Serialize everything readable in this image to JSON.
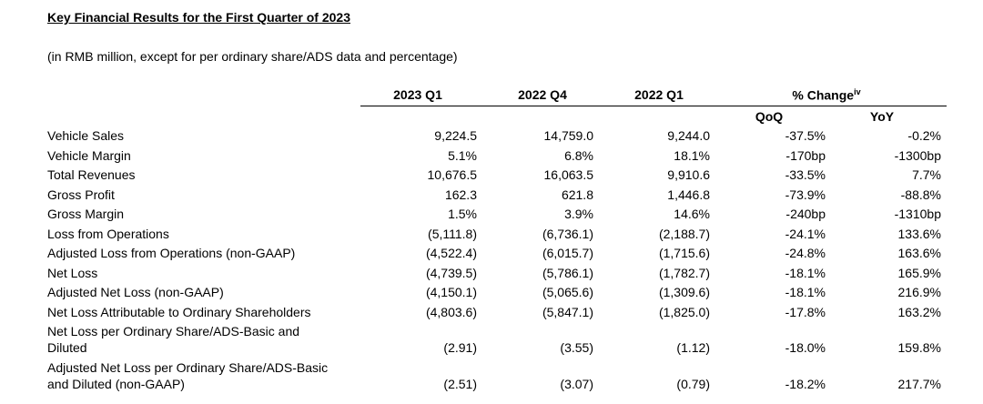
{
  "title": "Key Financial Results for the First Quarter of 2023",
  "subtitle": "(in RMB million, except for per ordinary share/ADS data and percentage)",
  "columns": [
    "2023 Q1",
    "2022 Q4",
    "2022 Q1"
  ],
  "change_header": "% Change",
  "change_sup": "iv",
  "subheaders": [
    "QoQ",
    "YoY"
  ],
  "rows": [
    {
      "label": [
        "Vehicle Sales"
      ],
      "values": [
        "9,224.5",
        "14,759.0",
        "9,244.0",
        "-37.5%",
        "-0.2%"
      ]
    },
    {
      "label": [
        "Vehicle Margin"
      ],
      "values": [
        "5.1%",
        "6.8%",
        "18.1%",
        "-170bp",
        "-1300bp"
      ]
    },
    {
      "label": [
        "Total Revenues"
      ],
      "values": [
        "10,676.5",
        "16,063.5",
        "9,910.6",
        "-33.5%",
        "7.7%"
      ]
    },
    {
      "label": [
        "Gross Profit"
      ],
      "values": [
        "162.3",
        "621.8",
        "1,446.8",
        "-73.9%",
        "-88.8%"
      ]
    },
    {
      "label": [
        "Gross Margin"
      ],
      "values": [
        "1.5%",
        "3.9%",
        "14.6%",
        "-240bp",
        "-1310bp"
      ]
    },
    {
      "label": [
        "Loss from Operations"
      ],
      "values": [
        "(5,111.8)",
        "(6,736.1)",
        "(2,188.7)",
        "-24.1%",
        "133.6%"
      ]
    },
    {
      "label": [
        "Adjusted Loss from Operations (non-GAAP)"
      ],
      "values": [
        "(4,522.4)",
        "(6,015.7)",
        "(1,715.6)",
        "-24.8%",
        "163.6%"
      ]
    },
    {
      "label": [
        "Net Loss"
      ],
      "values": [
        "(4,739.5)",
        "(5,786.1)",
        "(1,782.7)",
        "-18.1%",
        "165.9%"
      ]
    },
    {
      "label": [
        "Adjusted Net Loss (non-GAAP)"
      ],
      "values": [
        "(4,150.1)",
        "(5,065.6)",
        "(1,309.6)",
        "-18.1%",
        "216.9%"
      ]
    },
    {
      "label": [
        "Net Loss Attributable to Ordinary Shareholders"
      ],
      "values": [
        "(4,803.6)",
        "(5,847.1)",
        "(1,825.0)",
        "-17.8%",
        "163.2%"
      ]
    },
    {
      "label": [
        "Net Loss per Ordinary Share/ADS-Basic and",
        "Diluted"
      ],
      "values": [
        "(2.91)",
        "(3.55)",
        "(1.12)",
        "-18.0%",
        "159.8%"
      ]
    },
    {
      "label": [
        "Adjusted Net Loss per Ordinary Share/ADS-Basic",
        "and Diluted (non-GAAP)"
      ],
      "values": [
        "(2.51)",
        "(3.07)",
        "(0.79)",
        "-18.2%",
        "217.7%"
      ]
    }
  ]
}
